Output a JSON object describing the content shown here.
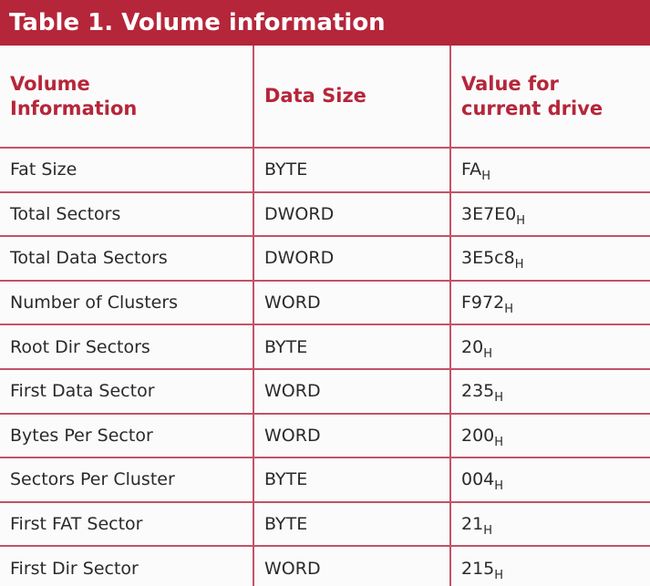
{
  "title": "Table 1. Volume information",
  "header": {
    "col1": "Volume\nInformation",
    "col2": "Data Size",
    "col3": "Value for\ncurrent drive"
  },
  "rows": [
    {
      "name": "Fat Size",
      "size": "BYTE",
      "value": "FA",
      "suffix": "H"
    },
    {
      "name": "Total Sectors",
      "size": "DWORD",
      "value": "3E7E0",
      "suffix": "H"
    },
    {
      "name": "Total Data Sectors",
      "size": "DWORD",
      "value": "3E5c8",
      "suffix": "H"
    },
    {
      "name": "Number of Clusters",
      "size": "WORD",
      "value": "F972",
      "suffix": "H"
    },
    {
      "name": "Root Dir Sectors",
      "size": "BYTE",
      "value": "20",
      "suffix": "H"
    },
    {
      "name": "First Data Sector",
      "size": "WORD",
      "value": "235",
      "suffix": "H"
    },
    {
      "name": "Bytes Per Sector",
      "size": "WORD",
      "value": "200",
      "suffix": "H"
    },
    {
      "name": "Sectors Per Cluster",
      "size": "BYTE",
      "value": "004",
      "suffix": "H"
    },
    {
      "name": "First FAT Sector",
      "size": "BYTE",
      "value": "21",
      "suffix": "H"
    },
    {
      "name": "First Dir Sector",
      "size": "WORD",
      "value": "215",
      "suffix": "H"
    }
  ]
}
